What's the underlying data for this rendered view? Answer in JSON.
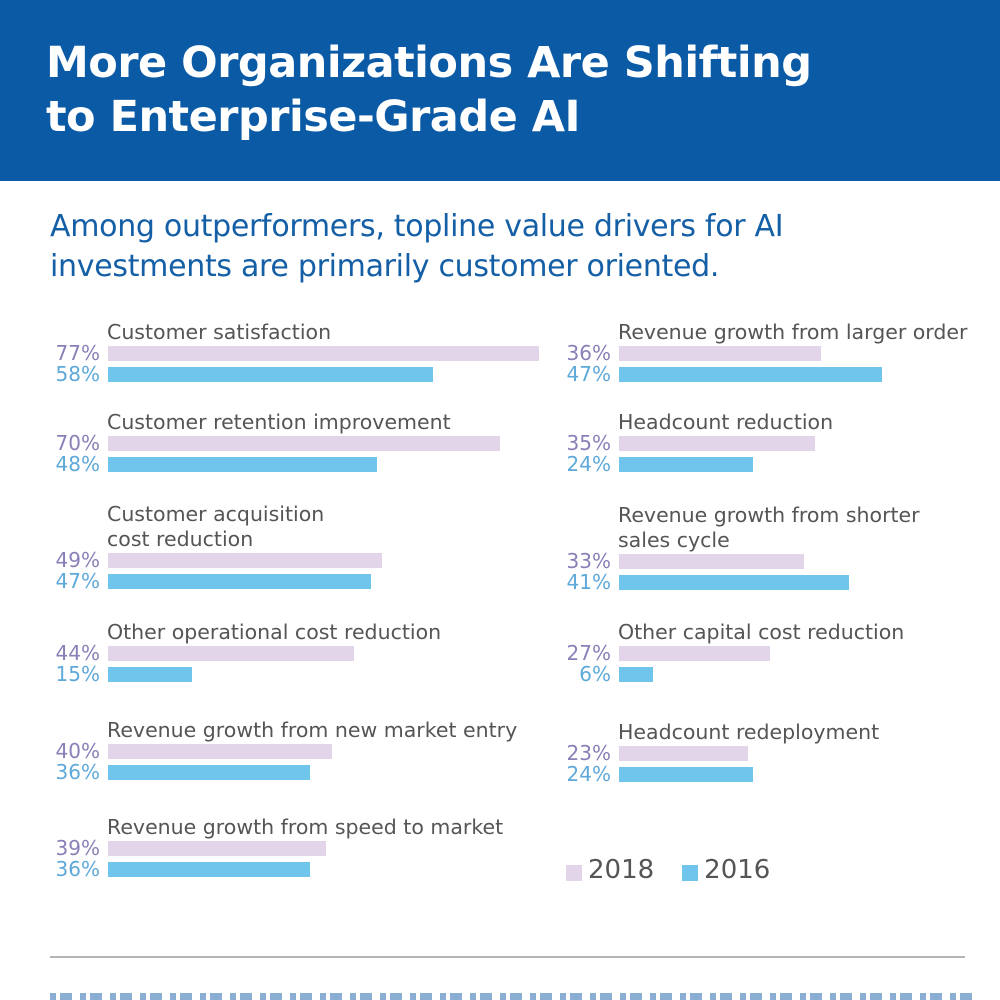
{
  "header": {
    "title_line1": "More Organizations Are Shifting",
    "title_line2": "to Enterprise-Grade AI"
  },
  "subtitle": "Among outperformers, topline value drivers for AI investments are primarily customer oriented.",
  "colors": {
    "header_bg": "#0a5aa5",
    "subtitle": "#145fa6",
    "bar_2018": "#e2d5ea",
    "bar_2016": "#6fc5eb",
    "pct_2018": "#8a7fb7",
    "pct_2016": "#5ea9d9"
  },
  "chart_data": {
    "type": "bar",
    "orientation": "horizontal",
    "title": "Among outperformers, topline value drivers for AI investments are primarily customer oriented.",
    "xlabel": "",
    "ylabel": "",
    "unit": "%",
    "xlim": [
      0,
      100
    ],
    "grid": false,
    "legend_position": "bottom-right",
    "categories": [
      "Customer satisfaction",
      "Customer retention improvement",
      "Customer acquisition\ncost reduction",
      "Other operational cost reduction",
      "Revenue growth from new market entry",
      "Revenue growth from speed to market",
      "Revenue growth from larger order",
      "Headcount reduction",
      "Revenue growth from shorter\nsales cycle",
      "Other capital cost reduction",
      "Headcount redeployment"
    ],
    "series": [
      {
        "name": "2018",
        "values": [
          77,
          70,
          49,
          44,
          40,
          39,
          36,
          35,
          33,
          27,
          23
        ]
      },
      {
        "name": "2016",
        "values": [
          58,
          48,
          47,
          15,
          36,
          36,
          47,
          24,
          41,
          6,
          24
        ]
      }
    ]
  },
  "legend": {
    "items": [
      {
        "label": "2018"
      },
      {
        "label": "2016"
      }
    ]
  },
  "footer_partial_text": ""
}
